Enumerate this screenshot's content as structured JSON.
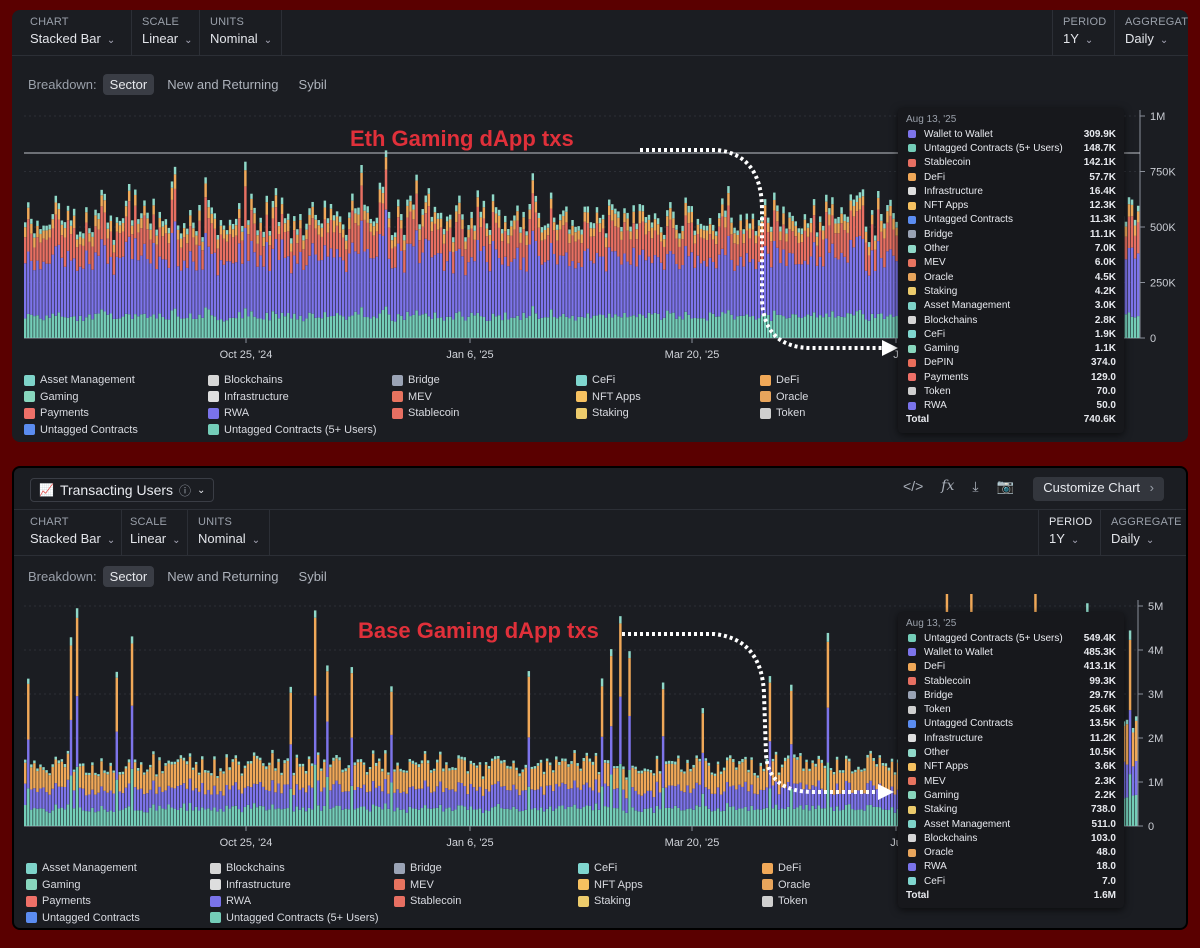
{
  "colors": {
    "asset_management": "#7ed3c9",
    "blockchains": "#d6d6d6",
    "bridge": "#9aa3b5",
    "cefi": "#7fd6cf",
    "defi": "#f0a858",
    "gaming": "#88d6bd",
    "infrastructure": "#dedede",
    "mev": "#e7735f",
    "nft_apps": "#f6c160",
    "oracle": "#e8a55c",
    "payments": "#ee7068",
    "rwa": "#7a73ea",
    "stablecoin": "#e76f62",
    "staking": "#eccb6c",
    "token": "#cfcfcf",
    "untagged_contracts": "#5b8cf0",
    "untagged_5plus": "#74cdb8",
    "wallet_to_wallet": "#7d74ea",
    "other": "#8fd8c8",
    "depin": "#e96d5a"
  },
  "legend": [
    {
      "label": "Asset Management",
      "key": "asset_management"
    },
    {
      "label": "Blockchains",
      "key": "blockchains"
    },
    {
      "label": "Bridge",
      "key": "bridge"
    },
    {
      "label": "CeFi",
      "key": "cefi"
    },
    {
      "label": "DeFi",
      "key": "defi"
    },
    {
      "label": "Gaming",
      "key": "gaming"
    },
    {
      "label": "Infrastructure",
      "key": "infrastructure"
    },
    {
      "label": "MEV",
      "key": "mev"
    },
    {
      "label": "NFT Apps",
      "key": "nft_apps"
    },
    {
      "label": "Oracle",
      "key": "oracle"
    },
    {
      "label": "Payments",
      "key": "payments"
    },
    {
      "label": "RWA",
      "key": "rwa"
    },
    {
      "label": "Stablecoin",
      "key": "stablecoin"
    },
    {
      "label": "Staking",
      "key": "staking"
    },
    {
      "label": "Token",
      "key": "token"
    },
    {
      "label": "Untagged Contracts",
      "key": "untagged_contracts"
    },
    {
      "label": "Untagged Contracts (5+ Users)",
      "key": "untagged_5plus"
    }
  ],
  "legend2_wallet_label": "Wallet to Wallet",
  "controls": {
    "chart_label": "CHART",
    "chart_value": "Stacked Bar",
    "scale_label": "SCALE",
    "scale_value": "Linear",
    "units_label": "UNITS",
    "units_value": "Nominal",
    "period_label": "PERIOD",
    "period_value": "1Y",
    "aggregate_label": "AGGREGATE",
    "aggregate_value": "Daily"
  },
  "breakdown": {
    "label": "Breakdown:",
    "options": [
      "Sector",
      "New and Returning",
      "Sybil"
    ]
  },
  "panel2_header": {
    "metric": "Transacting Users",
    "info_icon": "ⓘ",
    "customize": "Customize Chart",
    "icons": [
      "code-icon",
      "fx-icon",
      "download-icon",
      "camera-icon"
    ]
  },
  "chart_data": [
    {
      "type": "bar",
      "stacked": true,
      "annotation": "Eth Gaming dApp txs",
      "x_tick_labels": [
        "Oct 25, '24",
        "Jan 6, '25",
        "Mar 20, '25",
        "J"
      ],
      "y_tick_labels": [
        "1M",
        "750K",
        "500K",
        "250K",
        "0"
      ],
      "ylim": [
        0,
        1000000
      ],
      "series_approx_daily": {
        "untagged_5plus": 100000,
        "wallet_to_wallet": 270000,
        "stablecoin": 120000,
        "defi": 45000,
        "other": 25000
      },
      "tooltip": {
        "date": "Aug 13, '25",
        "rows": [
          {
            "name": "Wallet to Wallet",
            "value": "309.9K",
            "key": "wallet_to_wallet"
          },
          {
            "name": "Untagged Contracts (5+ Users)",
            "value": "148.7K",
            "key": "untagged_5plus"
          },
          {
            "name": "Stablecoin",
            "value": "142.1K",
            "key": "stablecoin"
          },
          {
            "name": "DeFi",
            "value": "57.7K",
            "key": "defi"
          },
          {
            "name": "Infrastructure",
            "value": "16.4K",
            "key": "infrastructure"
          },
          {
            "name": "NFT Apps",
            "value": "12.3K",
            "key": "nft_apps"
          },
          {
            "name": "Untagged Contracts",
            "value": "11.3K",
            "key": "untagged_contracts"
          },
          {
            "name": "Bridge",
            "value": "11.1K",
            "key": "bridge"
          },
          {
            "name": "Other",
            "value": "7.0K",
            "key": "other"
          },
          {
            "name": "MEV",
            "value": "6.0K",
            "key": "mev"
          },
          {
            "name": "Oracle",
            "value": "4.5K",
            "key": "oracle"
          },
          {
            "name": "Staking",
            "value": "4.2K",
            "key": "staking"
          },
          {
            "name": "Asset Management",
            "value": "3.0K",
            "key": "asset_management"
          },
          {
            "name": "Blockchains",
            "value": "2.8K",
            "key": "blockchains"
          },
          {
            "name": "CeFi",
            "value": "1.9K",
            "key": "cefi"
          },
          {
            "name": "Gaming",
            "value": "1.1K",
            "key": "gaming"
          },
          {
            "name": "DePIN",
            "value": "374.0",
            "key": "depin"
          },
          {
            "name": "Payments",
            "value": "129.0",
            "key": "payments"
          },
          {
            "name": "Token",
            "value": "70.0",
            "key": "token"
          },
          {
            "name": "RWA",
            "value": "50.0",
            "key": "rwa"
          }
        ],
        "total_label": "Total",
        "total": "740.6K"
      }
    },
    {
      "type": "bar",
      "stacked": true,
      "annotation": "Base Gaming dApp txs",
      "x_tick_labels": [
        "Oct 25, '24",
        "Jan 6, '25",
        "Mar 20, '25",
        "Ju"
      ],
      "y_tick_labels": [
        "5M",
        "4M",
        "3M",
        "2M",
        "1M",
        "0"
      ],
      "ylim": [
        0,
        5000000
      ],
      "series_approx_daily": {
        "untagged_5plus": 400000,
        "wallet_to_wallet": 450000,
        "defi": 500000,
        "other": 60000
      },
      "tooltip": {
        "date": "Aug 13, '25",
        "rows": [
          {
            "name": "Untagged Contracts (5+ Users)",
            "value": "549.4K",
            "key": "untagged_5plus"
          },
          {
            "name": "Wallet to Wallet",
            "value": "485.3K",
            "key": "wallet_to_wallet"
          },
          {
            "name": "DeFi",
            "value": "413.1K",
            "key": "defi"
          },
          {
            "name": "Stablecoin",
            "value": "99.3K",
            "key": "stablecoin"
          },
          {
            "name": "Bridge",
            "value": "29.7K",
            "key": "bridge"
          },
          {
            "name": "Token",
            "value": "25.6K",
            "key": "token"
          },
          {
            "name": "Untagged Contracts",
            "value": "13.5K",
            "key": "untagged_contracts"
          },
          {
            "name": "Infrastructure",
            "value": "11.2K",
            "key": "infrastructure"
          },
          {
            "name": "Other",
            "value": "10.5K",
            "key": "other"
          },
          {
            "name": "NFT Apps",
            "value": "3.6K",
            "key": "nft_apps"
          },
          {
            "name": "MEV",
            "value": "2.3K",
            "key": "mev"
          },
          {
            "name": "Gaming",
            "value": "2.2K",
            "key": "gaming"
          },
          {
            "name": "Staking",
            "value": "738.0",
            "key": "staking"
          },
          {
            "name": "Asset Management",
            "value": "511.0",
            "key": "asset_management"
          },
          {
            "name": "Blockchains",
            "value": "103.0",
            "key": "blockchains"
          },
          {
            "name": "Oracle",
            "value": "48.0",
            "key": "oracle"
          },
          {
            "name": "RWA",
            "value": "18.0",
            "key": "rwa"
          },
          {
            "name": "CeFi",
            "value": "7.0",
            "key": "cefi"
          }
        ],
        "total_label": "Total",
        "total": "1.6M"
      }
    }
  ]
}
